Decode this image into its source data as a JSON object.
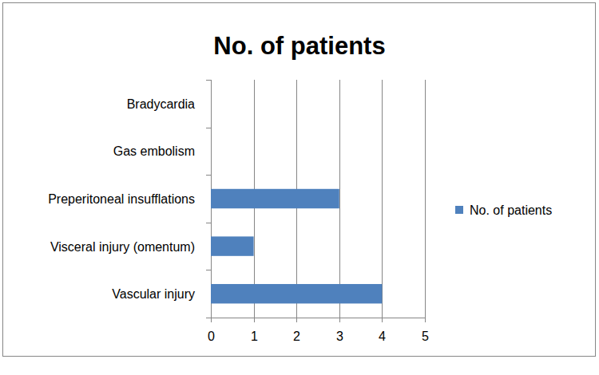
{
  "chart_data": {
    "type": "bar",
    "title": "No. of patients",
    "orientation": "horizontal",
    "categories": [
      "Vascular injury",
      "Visceral injury (omentum)",
      "Preperitoneal insufflations",
      "Gas embolism",
      "Bradycardia"
    ],
    "series": [
      {
        "name": "No. of patients",
        "color": "#4f81bd",
        "values": [
          4,
          1,
          3,
          0,
          0
        ]
      }
    ],
    "xlim": [
      0,
      5
    ],
    "xticks": [
      0,
      1,
      2,
      3,
      4,
      5
    ],
    "grid": true,
    "legend": "right"
  }
}
